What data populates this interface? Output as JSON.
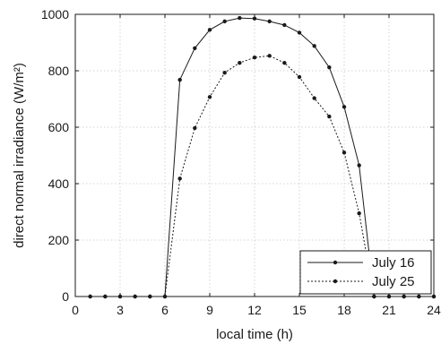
{
  "chart_data": {
    "type": "line",
    "xlabel": "local time (h)",
    "ylabel": "direct normal irradiance (W/m²)",
    "xlim": [
      0,
      24
    ],
    "ylim": [
      0,
      1000
    ],
    "xticks": [
      0,
      3,
      6,
      9,
      12,
      15,
      18,
      21,
      24
    ],
    "yticks": [
      0,
      200,
      400,
      600,
      800,
      1000
    ],
    "grid": true,
    "legend_position": "bottom-right",
    "series": [
      {
        "name": "July 16",
        "line_style": "solid",
        "color": "#1a1a1a",
        "x": [
          1,
          2,
          3,
          4,
          5,
          6,
          7,
          8,
          9,
          10,
          11,
          12,
          13,
          14,
          15,
          16,
          17,
          18,
          19,
          20,
          21,
          22,
          23,
          24
        ],
        "y": [
          0,
          0,
          0,
          0,
          0,
          0,
          768,
          880,
          945,
          975,
          987,
          985,
          975,
          962,
          935,
          888,
          812,
          672,
          465,
          0,
          0,
          0,
          0,
          0
        ]
      },
      {
        "name": "July 25",
        "line_style": "dashed",
        "color": "#1a1a1a",
        "x": [
          1,
          2,
          3,
          4,
          5,
          6,
          7,
          8,
          9,
          10,
          11,
          12,
          13,
          14,
          15,
          16,
          17,
          18,
          19,
          20,
          21,
          22,
          23,
          24
        ],
        "y": [
          0,
          0,
          0,
          0,
          0,
          0,
          418,
          597,
          707,
          793,
          828,
          847,
          853,
          828,
          778,
          703,
          638,
          510,
          295,
          0,
          0,
          0,
          0,
          0
        ]
      }
    ]
  }
}
